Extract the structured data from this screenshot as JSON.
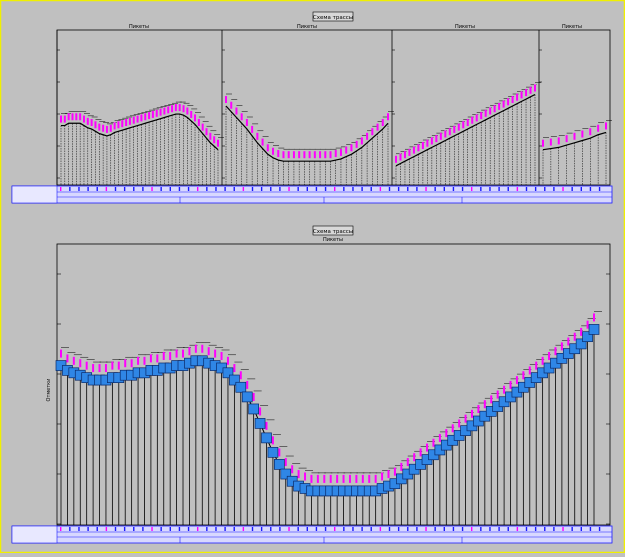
{
  "colors": {
    "background": "#c0c0c0",
    "border": "#f0f000",
    "ink": "#000000",
    "label": "#ff00ff",
    "marker": "#2f86e6",
    "marker_edge": "#0a2a6a",
    "table": "#1a1aff"
  },
  "top_view": {
    "title": "Схема трассы",
    "panels": [
      {
        "header": "Пикеты",
        "profile": [
          0.43,
          0.43,
          0.45,
          0.45,
          0.45,
          0.45,
          0.43,
          0.41,
          0.4,
          0.38,
          0.36,
          0.35,
          0.34,
          0.35,
          0.37,
          0.38,
          0.39,
          0.4,
          0.41,
          0.42,
          0.43,
          0.44,
          0.45,
          0.46,
          0.47,
          0.48,
          0.49,
          0.5,
          0.51,
          0.52,
          0.53,
          0.53,
          0.52,
          0.5,
          0.47,
          0.44,
          0.4,
          0.36,
          0.32,
          0.28,
          0.25,
          0.22
        ]
      },
      {
        "header": "Пикеты",
        "profile": [
          0.6,
          0.55,
          0.5,
          0.45,
          0.4,
          0.34,
          0.28,
          0.23,
          0.18,
          0.15,
          0.13,
          0.12,
          0.12,
          0.12,
          0.12,
          0.12,
          0.12,
          0.12,
          0.12,
          0.12,
          0.12,
          0.13,
          0.14,
          0.16,
          0.18,
          0.21,
          0.24,
          0.28,
          0.32,
          0.36,
          0.4,
          0.45
        ]
      },
      {
        "header": "Пикеты",
        "profile": [
          0.08,
          0.1,
          0.12,
          0.14,
          0.16,
          0.18,
          0.2,
          0.22,
          0.24,
          0.26,
          0.28,
          0.3,
          0.32,
          0.34,
          0.36,
          0.38,
          0.4,
          0.42,
          0.44,
          0.46,
          0.48,
          0.5,
          0.52,
          0.54,
          0.56,
          0.58,
          0.6,
          0.62,
          0.64,
          0.66,
          0.68,
          0.7
        ]
      },
      {
        "header": "Пикеты",
        "profile": [
          0.22,
          0.23,
          0.24,
          0.26,
          0.28,
          0.3,
          0.32,
          0.35,
          0.37
        ]
      }
    ]
  },
  "bottom_view": {
    "title": "Схема трассы",
    "header": "Пикеты",
    "y_axis_label": "Отметки",
    "profile": [
      0.62,
      0.6,
      0.59,
      0.58,
      0.57,
      0.56,
      0.56,
      0.56,
      0.57,
      0.57,
      0.58,
      0.58,
      0.59,
      0.59,
      0.6,
      0.6,
      0.61,
      0.61,
      0.62,
      0.62,
      0.63,
      0.64,
      0.64,
      0.63,
      0.62,
      0.61,
      0.59,
      0.56,
      0.53,
      0.49,
      0.44,
      0.38,
      0.32,
      0.26,
      0.21,
      0.17,
      0.14,
      0.12,
      0.11,
      0.1,
      0.1,
      0.1,
      0.1,
      0.1,
      0.1,
      0.1,
      0.1,
      0.1,
      0.1,
      0.1,
      0.11,
      0.12,
      0.13,
      0.15,
      0.17,
      0.19,
      0.21,
      0.23,
      0.25,
      0.27,
      0.29,
      0.31,
      0.33,
      0.35,
      0.37,
      0.39,
      0.41,
      0.43,
      0.45,
      0.47,
      0.49,
      0.51,
      0.53,
      0.55,
      0.57,
      0.59,
      0.61,
      0.63,
      0.65,
      0.67,
      0.69,
      0.71,
      0.74,
      0.77
    ]
  }
}
